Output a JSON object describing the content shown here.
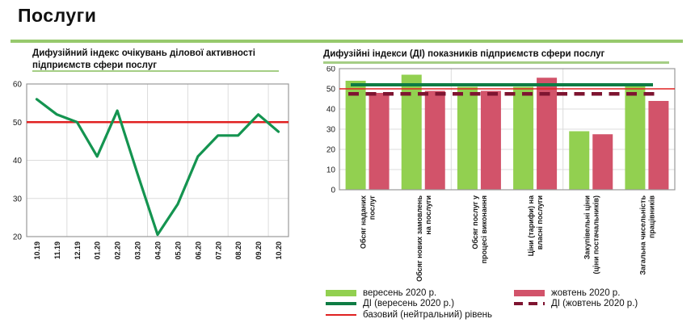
{
  "page": {
    "title": "Послуги"
  },
  "colors": {
    "september_green": "#92D050",
    "october_pink": "#D2536A",
    "di_september_green": "#0E7C44",
    "di_october_maroon": "#7E1430",
    "neutral_red": "#E02121",
    "line_green": "#149450",
    "accent_rule_green": "#97C96D",
    "gridline": "#DCDCDC",
    "plot_border": "#999999"
  },
  "legend": {
    "september": "вересень 2020 р.",
    "di_september": "ДІ (вересень 2020 р.)",
    "neutral": "базовий (нейтральний) рівень",
    "october": "жовтень 2020 р.",
    "di_october": "ДІ (жовтень 2020 р.)"
  },
  "chart_data": [
    {
      "type": "line",
      "title": "Дифузійний  індекс очікувань ділової активності\nпідприємств  сфери послуг",
      "x": [
        "10.19",
        "11.19",
        "12.19",
        "01.20",
        "02.20",
        "03.20",
        "04.20",
        "05.20",
        "06.20",
        "07.20",
        "08.20",
        "09.20",
        "10.20"
      ],
      "series": [
        {
          "values": [
            56,
            52,
            50,
            41,
            53,
            36.5,
            20.5,
            28.5,
            41,
            46.5,
            46.5,
            52,
            47.5
          ]
        }
      ],
      "baseline": {
        "value": 50
      },
      "xlabel": "",
      "ylabel": "",
      "ylim": [
        20,
        60
      ],
      "yticks": [
        20,
        30,
        40,
        50,
        60
      ],
      "grid": true,
      "legend_position": "none"
    },
    {
      "type": "bar",
      "title": "Дифузійні  індекси (ДІ)  показників підприємств  сфери послуг",
      "categories": [
        [
          "Обсяг наданих",
          "послуг"
        ],
        [
          "Обсяг нових замовлень",
          "на послуги"
        ],
        [
          "Обсяг послуг у",
          "процесі виконання"
        ],
        [
          "Ціни (тарифи)  на",
          "власні послуги"
        ],
        [
          "Закупівельні ціни",
          "(ціни постачальників)"
        ],
        [
          "Загальна  чисельність",
          "працівників"
        ]
      ],
      "series": [
        {
          "name": "вересень 2020 р.",
          "values": [
            54,
            57,
            51,
            51,
            29,
            52
          ],
          "color": "#92D050"
        },
        {
          "name": "жовтень 2020 р.",
          "values": [
            48,
            49,
            49,
            55.5,
            27.5,
            44
          ],
          "color": "#D2536A"
        }
      ],
      "lines": [
        {
          "name": "ДІ (вересень 2020 р.)",
          "value": 52,
          "style": "solid",
          "color": "#0E7C44"
        },
        {
          "name": "ДІ (жовтень 2020 р.)",
          "value": 47.5,
          "style": "dashed",
          "color": "#7E1430"
        },
        {
          "name": "базовий (нейтральний) рівень",
          "value": 50,
          "style": "thin",
          "color": "#E02121"
        }
      ],
      "xlabel": "",
      "ylabel": "",
      "ylim": [
        0,
        60
      ],
      "yticks": [
        0,
        10,
        20,
        30,
        40,
        50,
        60
      ],
      "grid": true,
      "legend_position": "bottom"
    }
  ]
}
